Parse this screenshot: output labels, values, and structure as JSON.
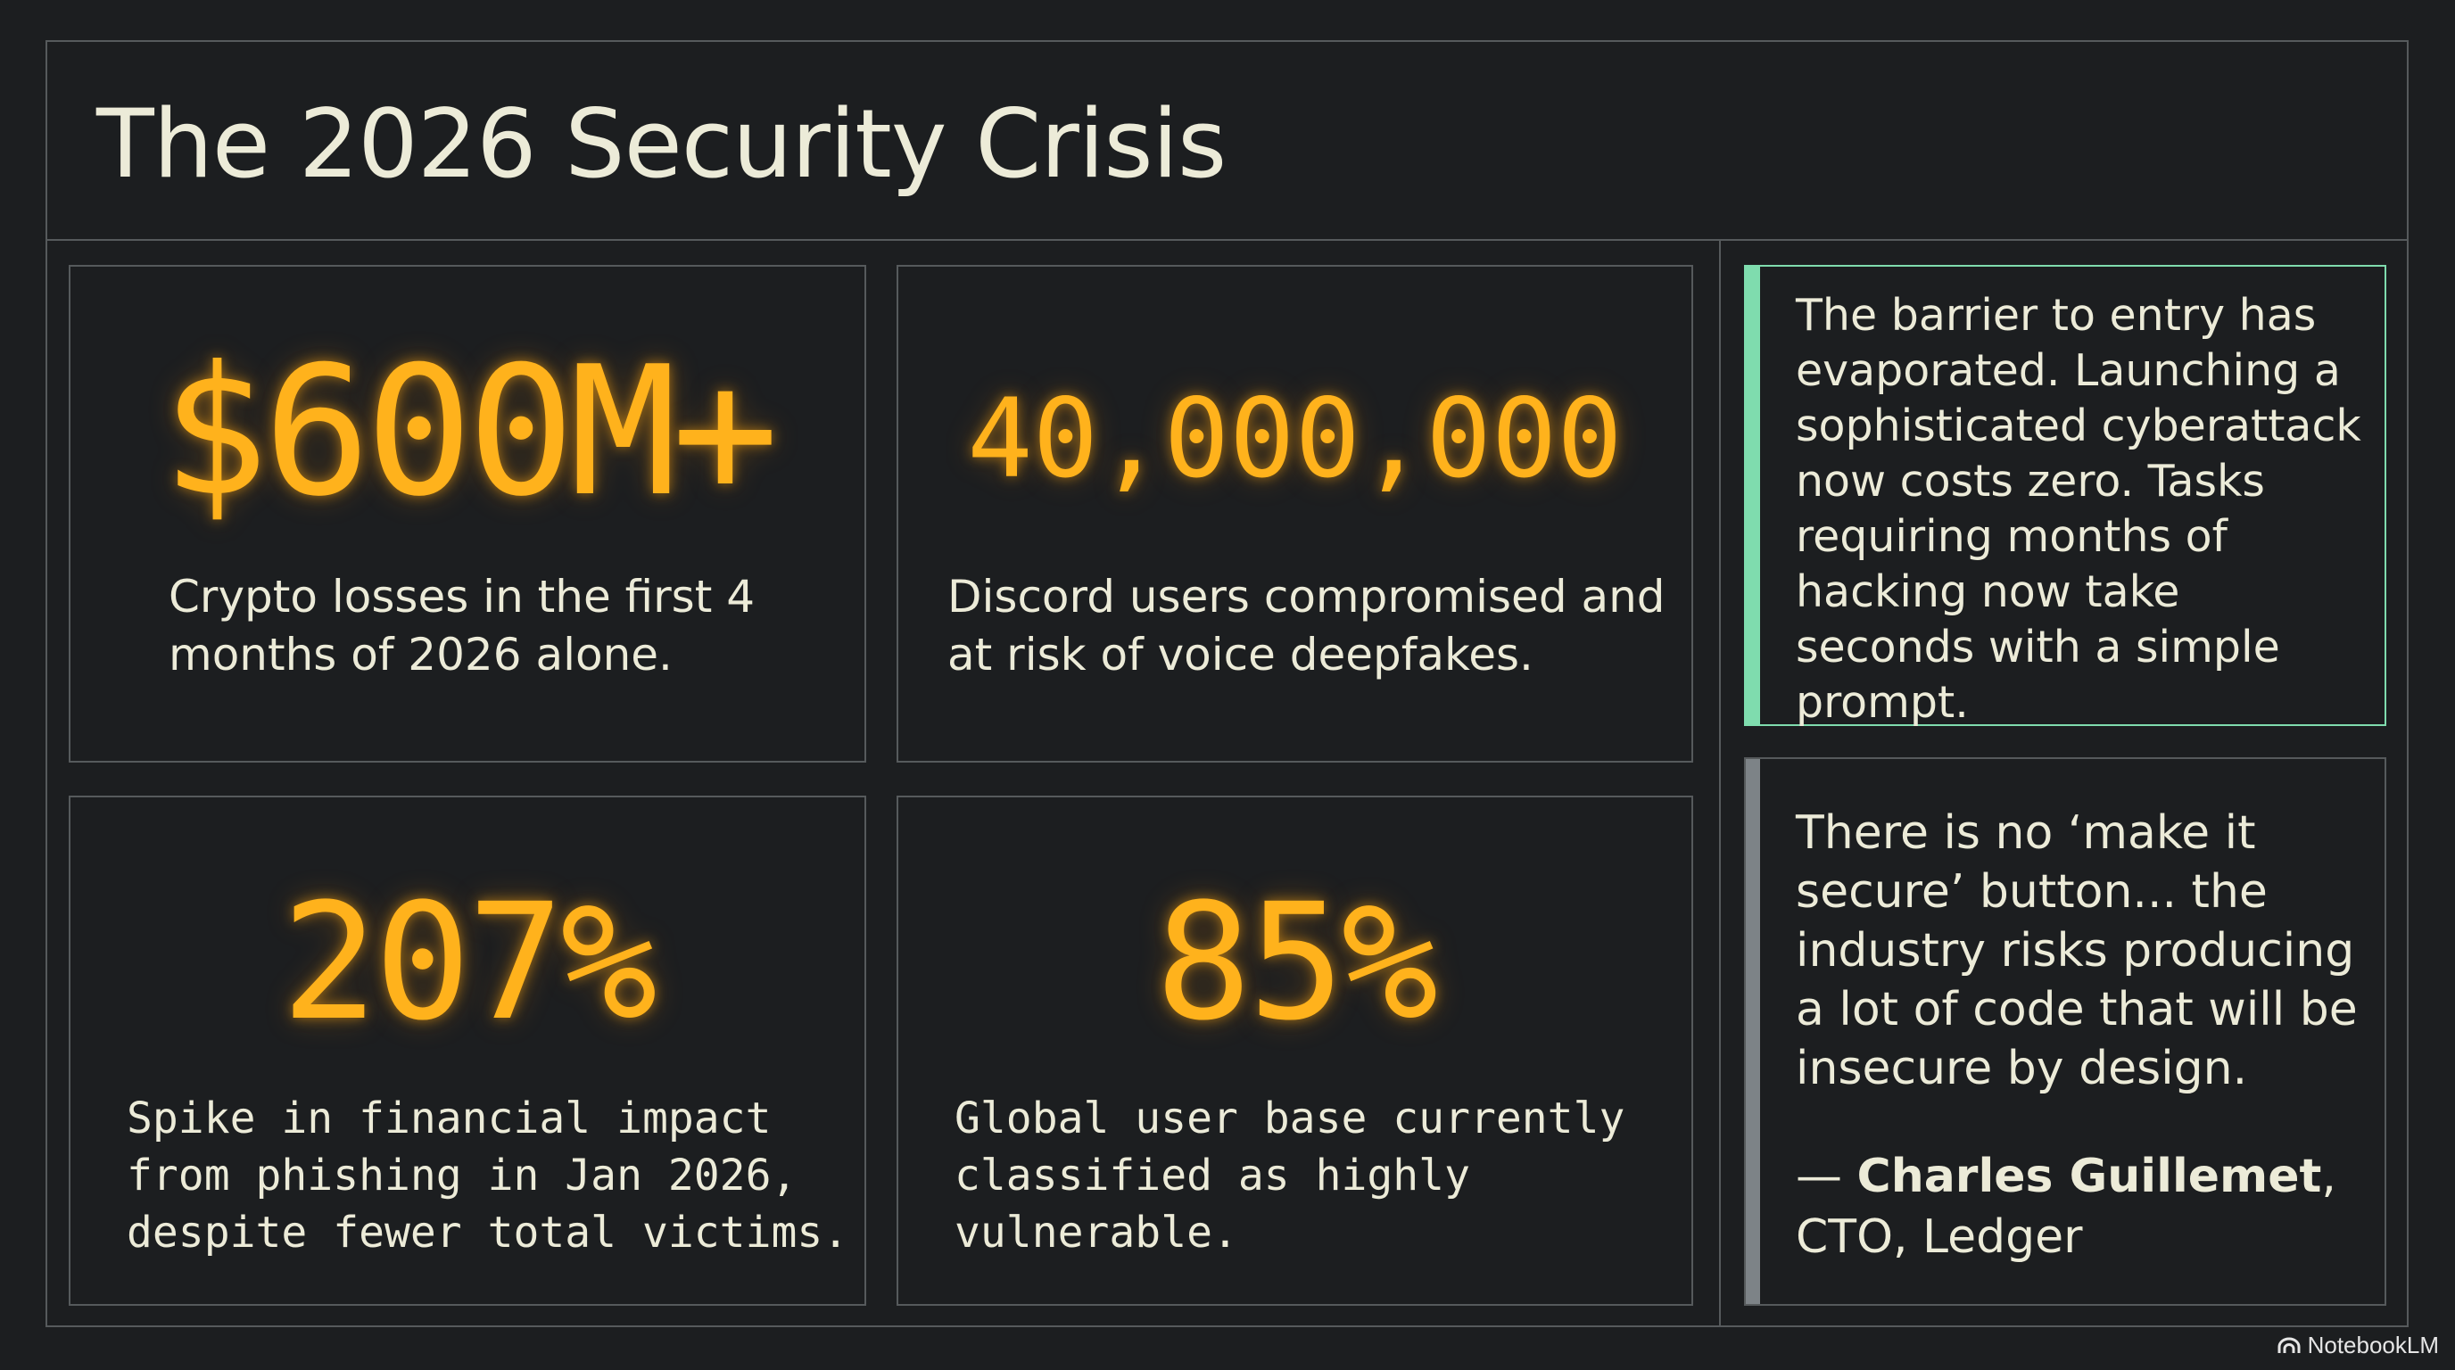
{
  "title": "The 2026 Security Crisis",
  "colors": {
    "background": "#1c1e20",
    "border": "#565a5c",
    "stat_amber": "#ffb21c",
    "text_cream": "#ecebd8",
    "accent_green": "#7fdcae",
    "accent_gray": "#7d8387"
  },
  "stats": [
    {
      "value": "$600M+",
      "description": "Crypto losses in the first 4 months of 2026 alone."
    },
    {
      "value": "40,000,000",
      "description": "Discord users compromised and at risk of voice deepfakes."
    },
    {
      "value": "207%",
      "description": "Spike in financial impact\nfrom phishing in Jan 2026,\ndespite fewer total victims."
    },
    {
      "value": "85%",
      "description": "Global user base currently\nclassified as highly\nvulnerable."
    }
  ],
  "insight": {
    "text": "The barrier to entry has evaporated. Launching a sophisticated cyberattack now costs zero. Tasks requiring months of hacking now take seconds with a simple prompt."
  },
  "quote": {
    "text": "There is no ‘make it secure’ button... the industry risks producing a lot of code that will be insecure by design.",
    "dash": "— ",
    "author": "Charles Guillemet",
    "comma": ",",
    "role": "CTO, Ledger"
  },
  "brand": {
    "icon": "notebooklm-logo-icon",
    "label": "NotebookLM"
  }
}
